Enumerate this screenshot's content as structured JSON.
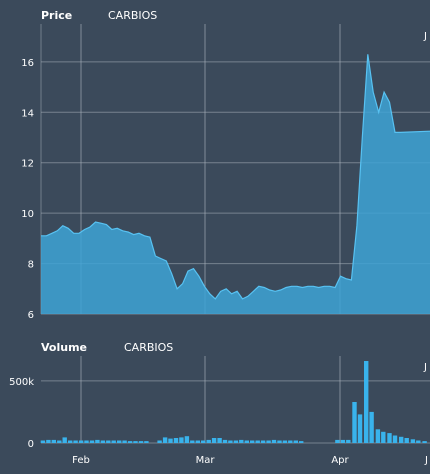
{
  "panels": {
    "price": {
      "label": "Price",
      "symbol": "CARBIOS"
    },
    "volume": {
      "label": "Volume",
      "symbol": "CARBIOS"
    }
  },
  "colors": {
    "background": "#3b4a5b",
    "grid": "#a7b0bb",
    "area_fill": "#3ea3d6",
    "area_line": "#58c2f2",
    "bar": "#39b3ec",
    "text": "#ffffff"
  },
  "chart_data": [
    {
      "type": "area",
      "panel": "price",
      "title": "Price",
      "subtitle": "CARBIOS",
      "x_ticks": [
        "Feb",
        "Mar",
        "Apr",
        "J"
      ],
      "y_ticks": [
        6,
        8,
        10,
        12,
        14,
        16
      ],
      "ylim": [
        6,
        17.5
      ],
      "xlim": [
        0,
        100
      ],
      "grid": true,
      "points": [
        [
          0,
          9.1
        ],
        [
          1.4,
          9.1
        ],
        [
          2.8,
          9.2
        ],
        [
          4.2,
          9.3
        ],
        [
          5.6,
          9.5
        ],
        [
          7,
          9.4
        ],
        [
          8.4,
          9.2
        ],
        [
          9.8,
          9.2
        ],
        [
          11.2,
          9.35
        ],
        [
          12.6,
          9.45
        ],
        [
          14,
          9.65
        ],
        [
          15.4,
          9.6
        ],
        [
          16.8,
          9.55
        ],
        [
          18.2,
          9.35
        ],
        [
          19.6,
          9.4
        ],
        [
          21,
          9.3
        ],
        [
          22.4,
          9.25
        ],
        [
          23.8,
          9.15
        ],
        [
          25.2,
          9.2
        ],
        [
          26.6,
          9.1
        ],
        [
          28,
          9.05
        ],
        [
          29.4,
          8.3
        ],
        [
          30.8,
          8.2
        ],
        [
          32.2,
          8.1
        ],
        [
          33.6,
          7.6
        ],
        [
          35,
          7.0
        ],
        [
          36.4,
          7.2
        ],
        [
          37.8,
          7.7
        ],
        [
          39.2,
          7.8
        ],
        [
          40.6,
          7.5
        ],
        [
          42,
          7.1
        ],
        [
          43.4,
          6.8
        ],
        [
          44.8,
          6.6
        ],
        [
          46.2,
          6.9
        ],
        [
          47.6,
          7.0
        ],
        [
          49,
          6.8
        ],
        [
          50.4,
          6.9
        ],
        [
          51.8,
          6.6
        ],
        [
          53.2,
          6.7
        ],
        [
          54.6,
          6.9
        ],
        [
          56,
          7.1
        ],
        [
          57.4,
          7.05
        ],
        [
          58.8,
          6.95
        ],
        [
          60.2,
          6.9
        ],
        [
          61.6,
          6.95
        ],
        [
          63,
          7.05
        ],
        [
          64.4,
          7.1
        ],
        [
          65.8,
          7.1
        ],
        [
          67.2,
          7.05
        ],
        [
          68.6,
          7.1
        ],
        [
          70,
          7.1
        ],
        [
          71.4,
          7.05
        ],
        [
          72.8,
          7.1
        ],
        [
          74.2,
          7.1
        ],
        [
          75.6,
          7.05
        ],
        [
          77,
          7.5
        ],
        [
          78.4,
          7.4
        ],
        [
          79.8,
          7.35
        ],
        [
          81.2,
          9.5
        ],
        [
          82.6,
          13.0
        ],
        [
          84,
          16.3
        ],
        [
          85.4,
          14.8
        ],
        [
          86.8,
          14.0
        ],
        [
          88.2,
          14.8
        ],
        [
          89.6,
          14.4
        ],
        [
          91,
          13.2
        ],
        [
          92.4,
          13.2
        ],
        [
          100,
          13.25
        ]
      ]
    },
    {
      "type": "bar",
      "panel": "volume",
      "title": "Volume",
      "subtitle": "CARBIOS",
      "y_ticks": [
        0,
        500000
      ],
      "y_tick_labels": [
        "0",
        "500k"
      ],
      "ylim": [
        0,
        700000
      ],
      "xlim": [
        0,
        100
      ],
      "x_ticks": [
        "Feb",
        "Mar",
        "Apr",
        "J"
      ],
      "grid": true,
      "bars": [
        [
          0.5,
          20000
        ],
        [
          1.9,
          25000
        ],
        [
          3.3,
          25000
        ],
        [
          4.7,
          20000
        ],
        [
          6.1,
          45000
        ],
        [
          7.5,
          20000
        ],
        [
          8.9,
          20000
        ],
        [
          10.3,
          20000
        ],
        [
          11.7,
          20000
        ],
        [
          13.1,
          20000
        ],
        [
          14.5,
          25000
        ],
        [
          15.9,
          20000
        ],
        [
          17.3,
          20000
        ],
        [
          18.7,
          20000
        ],
        [
          20.1,
          20000
        ],
        [
          21.5,
          20000
        ],
        [
          22.9,
          15000
        ],
        [
          24.3,
          15000
        ],
        [
          25.7,
          15000
        ],
        [
          27.1,
          15000
        ],
        [
          30.5,
          20000
        ],
        [
          31.9,
          45000
        ],
        [
          33.3,
          35000
        ],
        [
          34.7,
          40000
        ],
        [
          36.1,
          45000
        ],
        [
          37.5,
          55000
        ],
        [
          38.9,
          20000
        ],
        [
          40.3,
          20000
        ],
        [
          41.7,
          20000
        ],
        [
          43.1,
          25000
        ],
        [
          44.5,
          40000
        ],
        [
          45.9,
          40000
        ],
        [
          47.3,
          25000
        ],
        [
          48.7,
          20000
        ],
        [
          50.1,
          20000
        ],
        [
          51.5,
          25000
        ],
        [
          52.9,
          20000
        ],
        [
          54.3,
          20000
        ],
        [
          55.7,
          20000
        ],
        [
          57.1,
          20000
        ],
        [
          58.5,
          20000
        ],
        [
          59.9,
          25000
        ],
        [
          61.3,
          20000
        ],
        [
          62.7,
          20000
        ],
        [
          64.1,
          20000
        ],
        [
          65.5,
          20000
        ],
        [
          66.9,
          15000
        ],
        [
          76.2,
          25000
        ],
        [
          77.6,
          25000
        ],
        [
          79,
          25000
        ],
        [
          80.6,
          330000
        ],
        [
          82,
          230000
        ],
        [
          83.6,
          660000
        ],
        [
          85,
          250000
        ],
        [
          86.6,
          110000
        ],
        [
          88,
          90000
        ],
        [
          89.6,
          80000
        ],
        [
          91,
          60000
        ],
        [
          92.6,
          50000
        ],
        [
          94,
          40000
        ],
        [
          95.6,
          30000
        ],
        [
          97,
          20000
        ],
        [
          98.6,
          15000
        ]
      ]
    }
  ]
}
